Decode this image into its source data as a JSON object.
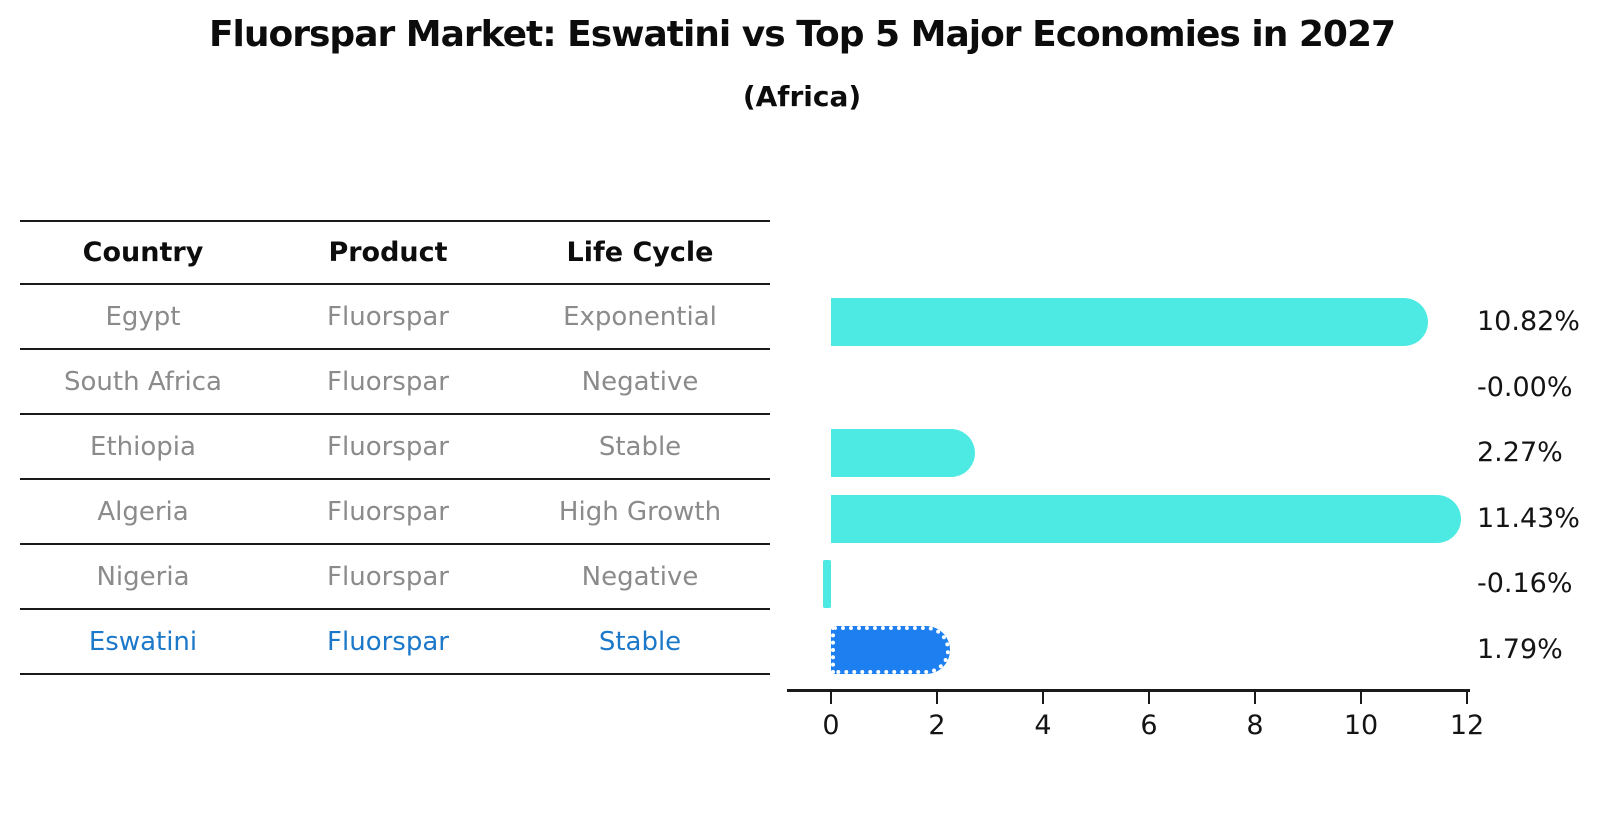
{
  "title": "Fluorspar Market: Eswatini vs Top 5 Major Economies in 2027",
  "subtitle": "(Africa)",
  "table": {
    "headers": [
      "Country",
      "Product",
      "Life Cycle"
    ],
    "rows": [
      {
        "country": "Egypt",
        "product": "Fluorspar",
        "life_cycle": "Exponential",
        "highlight": false
      },
      {
        "country": "South Africa",
        "product": "Fluorspar",
        "life_cycle": "Negative",
        "highlight": false
      },
      {
        "country": "Ethiopia",
        "product": "Fluorspar",
        "life_cycle": "Stable",
        "highlight": false
      },
      {
        "country": "Algeria",
        "product": "Fluorspar",
        "life_cycle": "High Growth",
        "highlight": false
      },
      {
        "country": "Nigeria",
        "product": "Fluorspar",
        "life_cycle": "Negative",
        "highlight": false
      },
      {
        "country": "Eswatini",
        "product": "Fluorspar",
        "life_cycle": "Stable",
        "highlight": true
      }
    ]
  },
  "chart_data": {
    "type": "bar",
    "orientation": "horizontal",
    "title": "Fluorspar Market: Eswatini vs Top 5 Major Economies in 2027",
    "subtitle": "(Africa)",
    "categories": [
      "Egypt",
      "South Africa",
      "Ethiopia",
      "Algeria",
      "Nigeria",
      "Eswatini"
    ],
    "values": [
      10.82,
      -0.0,
      2.27,
      11.43,
      -0.16,
      1.79
    ],
    "value_labels": [
      "10.82%",
      "-0.00%",
      "2.27%",
      "11.43%",
      "-0.16%",
      "1.79%"
    ],
    "unit": "%",
    "xlim": [
      0,
      12
    ],
    "xticks": [
      "0",
      "2",
      "4",
      "6",
      "8",
      "10",
      "12"
    ],
    "xtick_values": [
      0,
      2,
      4,
      6,
      8,
      10,
      12
    ],
    "grid": false,
    "legend": false,
    "bar_color": "#4DE9E3",
    "highlight_bar_color": "#1E80F0",
    "highlight_index": 5
  },
  "colors": {
    "bar": "#4DE9E3",
    "highlight_bar": "#1E80F0",
    "highlight_text": "#1C78C8",
    "table_text": "#8B8B8B",
    "heading_text": "#0C0C0C",
    "axis": "#1A1A1A"
  }
}
